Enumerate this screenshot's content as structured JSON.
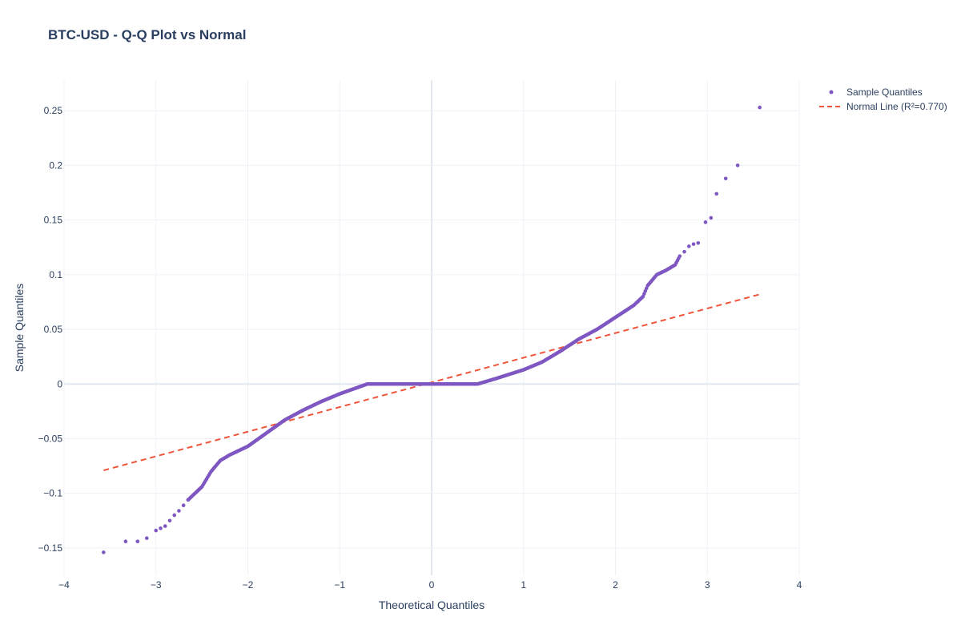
{
  "chart_data": {
    "type": "scatter",
    "title": "BTC-USD - Q-Q Plot vs Normal",
    "xlabel": "Theoretical Quantiles",
    "ylabel": "Sample Quantiles",
    "xlim": [
      -4,
      4
    ],
    "ylim": [
      -0.175,
      0.278
    ],
    "x_ticks": [
      -4,
      -3,
      -2,
      -1,
      0,
      1,
      2,
      3,
      4
    ],
    "x_tick_labels": [
      "−4",
      "−3",
      "−2",
      "−1",
      "0",
      "1",
      "2",
      "3",
      "4"
    ],
    "y_ticks": [
      -0.15,
      -0.1,
      -0.05,
      0,
      0.05,
      0.1,
      0.15,
      0.2,
      0.25
    ],
    "y_tick_labels": [
      "−0.15",
      "−0.1",
      "−0.05",
      "0",
      "0.05",
      "0.1",
      "0.15",
      "0.2",
      "0.25"
    ],
    "grid": true,
    "legend_position": "top-right",
    "series": [
      {
        "name": "Sample Quantiles",
        "kind": "markers",
        "color": "#7e57c2",
        "outlier_points": [
          [
            -3.57,
            -0.154
          ],
          [
            -3.33,
            -0.144
          ],
          [
            -3.2,
            -0.144
          ],
          [
            -3.1,
            -0.141
          ],
          [
            -3.0,
            -0.134
          ],
          [
            -2.95,
            -0.132
          ],
          [
            -2.9,
            -0.13
          ],
          [
            -2.85,
            -0.125
          ],
          [
            -2.8,
            -0.12
          ],
          [
            -2.75,
            -0.116
          ],
          [
            -2.7,
            -0.111
          ],
          [
            -2.65,
            -0.106
          ],
          [
            2.7,
            0.117
          ],
          [
            2.75,
            0.121
          ],
          [
            2.8,
            0.126
          ],
          [
            2.85,
            0.128
          ],
          [
            2.9,
            0.129
          ],
          [
            2.98,
            0.148
          ],
          [
            3.04,
            0.152
          ],
          [
            3.1,
            0.174
          ],
          [
            3.2,
            0.188
          ],
          [
            3.33,
            0.2
          ],
          [
            3.57,
            0.253
          ]
        ],
        "curve_knots": [
          [
            -2.65,
            -0.106
          ],
          [
            -2.5,
            -0.094
          ],
          [
            -2.4,
            -0.08
          ],
          [
            -2.3,
            -0.07
          ],
          [
            -2.2,
            -0.065
          ],
          [
            -2.0,
            -0.057
          ],
          [
            -1.8,
            -0.045
          ],
          [
            -1.6,
            -0.033
          ],
          [
            -1.4,
            -0.024
          ],
          [
            -1.2,
            -0.016
          ],
          [
            -1.0,
            -0.009
          ],
          [
            -0.8,
            -0.003
          ],
          [
            -0.7,
            0.0
          ],
          [
            0.5,
            0.0
          ],
          [
            0.7,
            0.005
          ],
          [
            1.0,
            0.013
          ],
          [
            1.2,
            0.02
          ],
          [
            1.4,
            0.03
          ],
          [
            1.6,
            0.041
          ],
          [
            1.8,
            0.05
          ],
          [
            2.0,
            0.061
          ],
          [
            2.2,
            0.072
          ],
          [
            2.3,
            0.08
          ],
          [
            2.35,
            0.09
          ],
          [
            2.45,
            0.1
          ],
          [
            2.55,
            0.104
          ],
          [
            2.65,
            0.109
          ],
          [
            2.7,
            0.117
          ]
        ]
      },
      {
        "name": "Normal Line (R²=0.770)",
        "kind": "dashed-line",
        "color": "#ef553b",
        "x": [
          -3.57,
          3.57
        ],
        "y": [
          -0.079,
          0.082
        ]
      }
    ]
  }
}
